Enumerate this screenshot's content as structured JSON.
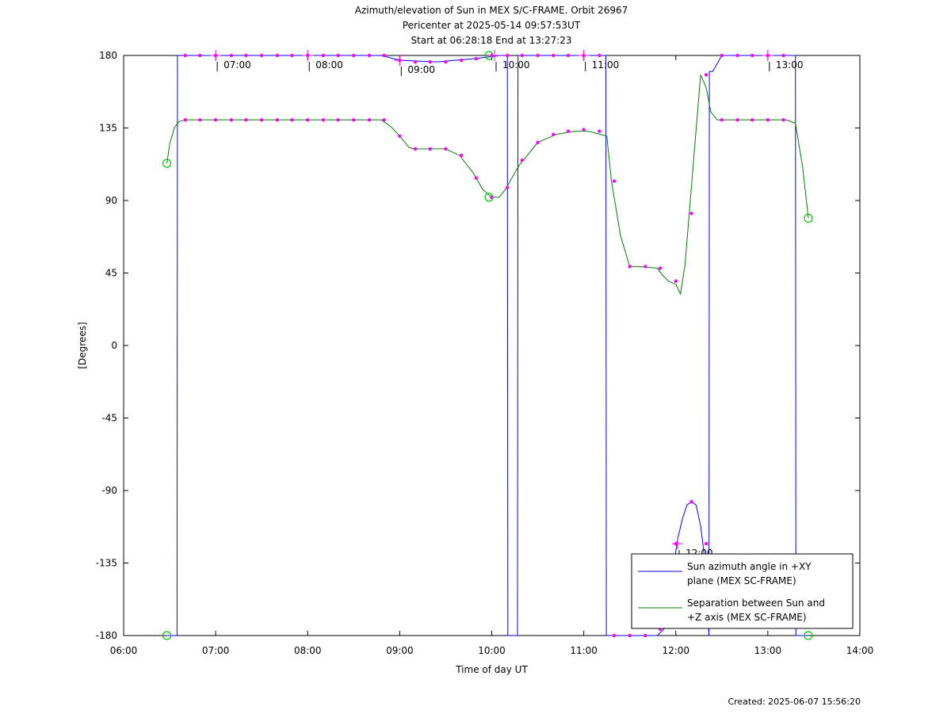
{
  "chart_data": {
    "type": "line",
    "title_lines": [
      "Azimuth/elevation of Sun in MEX S/C-FRAME.  Orbit 26967",
      "Pericenter at 2025-05-14 09:57:53UT",
      "Start at 06:28:18 End at 13:27:23"
    ],
    "xlabel": "Time of day UT",
    "ylabel": "[Degrees]",
    "xlim": [
      6.0,
      14.0
    ],
    "ylim": [
      -180,
      180
    ],
    "x_ticks": [
      6,
      7,
      8,
      9,
      10,
      11,
      12,
      13,
      14
    ],
    "x_tick_labels": [
      "06:00",
      "07:00",
      "08:00",
      "09:00",
      "10:00",
      "11:00",
      "12:00",
      "13:00",
      "14:00"
    ],
    "y_ticks": [
      180,
      135,
      90,
      45,
      0,
      -45,
      -90,
      -135,
      -180
    ],
    "y_tick_labels": [
      "180",
      "135",
      "90",
      "45",
      "0",
      "-45",
      "-90",
      "-135",
      "-180"
    ],
    "grid": false,
    "legend_position": "bottom-right",
    "footer": "Created: 2025-06-07 15:56:20",
    "hour_markers": [
      {
        "label": "07:00",
        "x": 7.0,
        "y": 180
      },
      {
        "label": "08:00",
        "x": 8.0,
        "y": 180
      },
      {
        "label": "09:00",
        "x": 9.0,
        "y": 177
      },
      {
        "label": "10:00",
        "x": 10.03,
        "y": 180
      },
      {
        "label": "11:00",
        "x": 11.0,
        "y": 180
      },
      {
        "label": "12:00",
        "x": 12.02,
        "y": -123
      },
      {
        "label": "13:00",
        "x": 13.0,
        "y": 180
      }
    ],
    "series": [
      {
        "name": "Sun azimuth angle in +XY plane (MEX SC-FRAME)",
        "color": "#0000ff",
        "x": [
          6.47,
          6.58,
          6.585,
          6.65,
          8.8,
          9.0,
          9.4,
          9.8,
          10.1,
          10.17,
          10.175,
          10.28,
          10.285,
          10.5,
          11.24,
          11.245,
          11.5,
          11.8,
          11.87,
          11.92,
          11.97,
          12.02,
          12.07,
          12.12,
          12.17,
          12.22,
          12.27,
          12.32,
          12.36,
          12.365,
          12.4,
          12.5,
          13.2,
          13.3,
          13.305,
          13.44
        ],
        "y": [
          -180,
          -180,
          180,
          180,
          180,
          177,
          176,
          178,
          180,
          180,
          -180,
          -180,
          180,
          180,
          180,
          -180,
          -180,
          -180,
          -176,
          -163,
          -140,
          -120,
          -108,
          -99,
          -97,
          -99,
          -112,
          -135,
          -180,
          170,
          170,
          180,
          180,
          180,
          -180,
          -180
        ]
      },
      {
        "name": "Separation between Sun and +Z axis (MEX SC-FRAME)",
        "color": "#008000",
        "x": [
          6.47,
          6.5,
          6.55,
          6.6,
          6.67,
          8.8,
          8.9,
          9.0,
          9.1,
          9.15,
          9.5,
          9.65,
          9.8,
          9.9,
          10.0,
          10.08,
          10.15,
          10.3,
          10.5,
          10.7,
          10.9,
          11.05,
          11.25,
          11.3,
          11.4,
          11.5,
          11.6,
          11.8,
          11.85,
          11.92,
          12.0,
          12.05,
          12.1,
          12.15,
          12.2,
          12.27,
          12.33,
          12.38,
          12.45,
          12.55,
          12.7,
          13.2,
          13.3,
          13.38,
          13.44
        ],
        "y": [
          113,
          125,
          135,
          139,
          140,
          140,
          136,
          130,
          123,
          122,
          122,
          118,
          107,
          97,
          92,
          92,
          97,
          112,
          126,
          131,
          133,
          133,
          130,
          102,
          68,
          49,
          49,
          48,
          44,
          40,
          38,
          32,
          50,
          85,
          120,
          168,
          160,
          145,
          140,
          140,
          140,
          140,
          138,
          110,
          79
        ]
      }
    ],
    "sample_markers": {
      "color": "#ff00ff",
      "azimuth": {
        "x": [
          6.67,
          6.83,
          7.0,
          7.17,
          7.33,
          7.5,
          7.67,
          7.83,
          8.0,
          8.17,
          8.33,
          8.5,
          8.67,
          8.83,
          9.0,
          9.17,
          9.33,
          9.5,
          9.67,
          9.83,
          10.0,
          10.17,
          10.33,
          10.5,
          10.67,
          10.83,
          11.0,
          11.17,
          11.33,
          11.5,
          11.67,
          11.83,
          12.0,
          12.17,
          12.33,
          12.5,
          12.67,
          12.83,
          13.0,
          13.17
        ],
        "y": [
          180,
          180,
          180,
          180,
          180,
          180,
          180,
          180,
          180,
          180,
          180,
          180,
          180,
          180,
          177,
          176,
          176,
          176,
          177,
          178,
          180,
          180,
          180,
          180,
          180,
          180,
          180,
          180,
          -180,
          -180,
          -180,
          -176,
          -123,
          -97,
          -123,
          180,
          180,
          180,
          180,
          180
        ]
      },
      "separation": {
        "x": [
          6.67,
          6.83,
          7.0,
          7.17,
          7.33,
          7.5,
          7.67,
          7.83,
          8.0,
          8.17,
          8.33,
          8.5,
          8.67,
          8.83,
          9.0,
          9.17,
          9.33,
          9.5,
          9.67,
          9.83,
          10.0,
          10.17,
          10.33,
          10.5,
          10.67,
          10.83,
          11.0,
          11.17,
          11.33,
          11.5,
          11.67,
          11.83,
          12.0,
          12.17,
          12.33,
          12.5,
          12.67,
          12.83,
          13.0,
          13.17
        ],
        "y": [
          140,
          140,
          140,
          140,
          140,
          140,
          140,
          140,
          140,
          140,
          140,
          140,
          140,
          140,
          130,
          122,
          122,
          122,
          118,
          104,
          92,
          98,
          115,
          126,
          131,
          133,
          134,
          133,
          102,
          49,
          49,
          48,
          40,
          82,
          168,
          140,
          140,
          140,
          140,
          140
        ]
      }
    },
    "endpoint_circles": {
      "color": "#00cc00",
      "points": [
        {
          "x": 6.47,
          "y": 113
        },
        {
          "x": 6.47,
          "y": -180
        },
        {
          "x": 9.97,
          "y": 92
        },
        {
          "x": 9.97,
          "y": 180
        },
        {
          "x": 13.44,
          "y": 79
        },
        {
          "x": 13.44,
          "y": -180
        }
      ]
    },
    "legend_entries": [
      {
        "lines": [
          "Sun azimuth angle in +XY",
          "plane (MEX SC-FRAME)"
        ],
        "color": "#0000ff"
      },
      {
        "lines": [
          "Separation between Sun and",
          "+Z axis (MEX SC-FRAME)"
        ],
        "color": "#008000"
      }
    ]
  }
}
